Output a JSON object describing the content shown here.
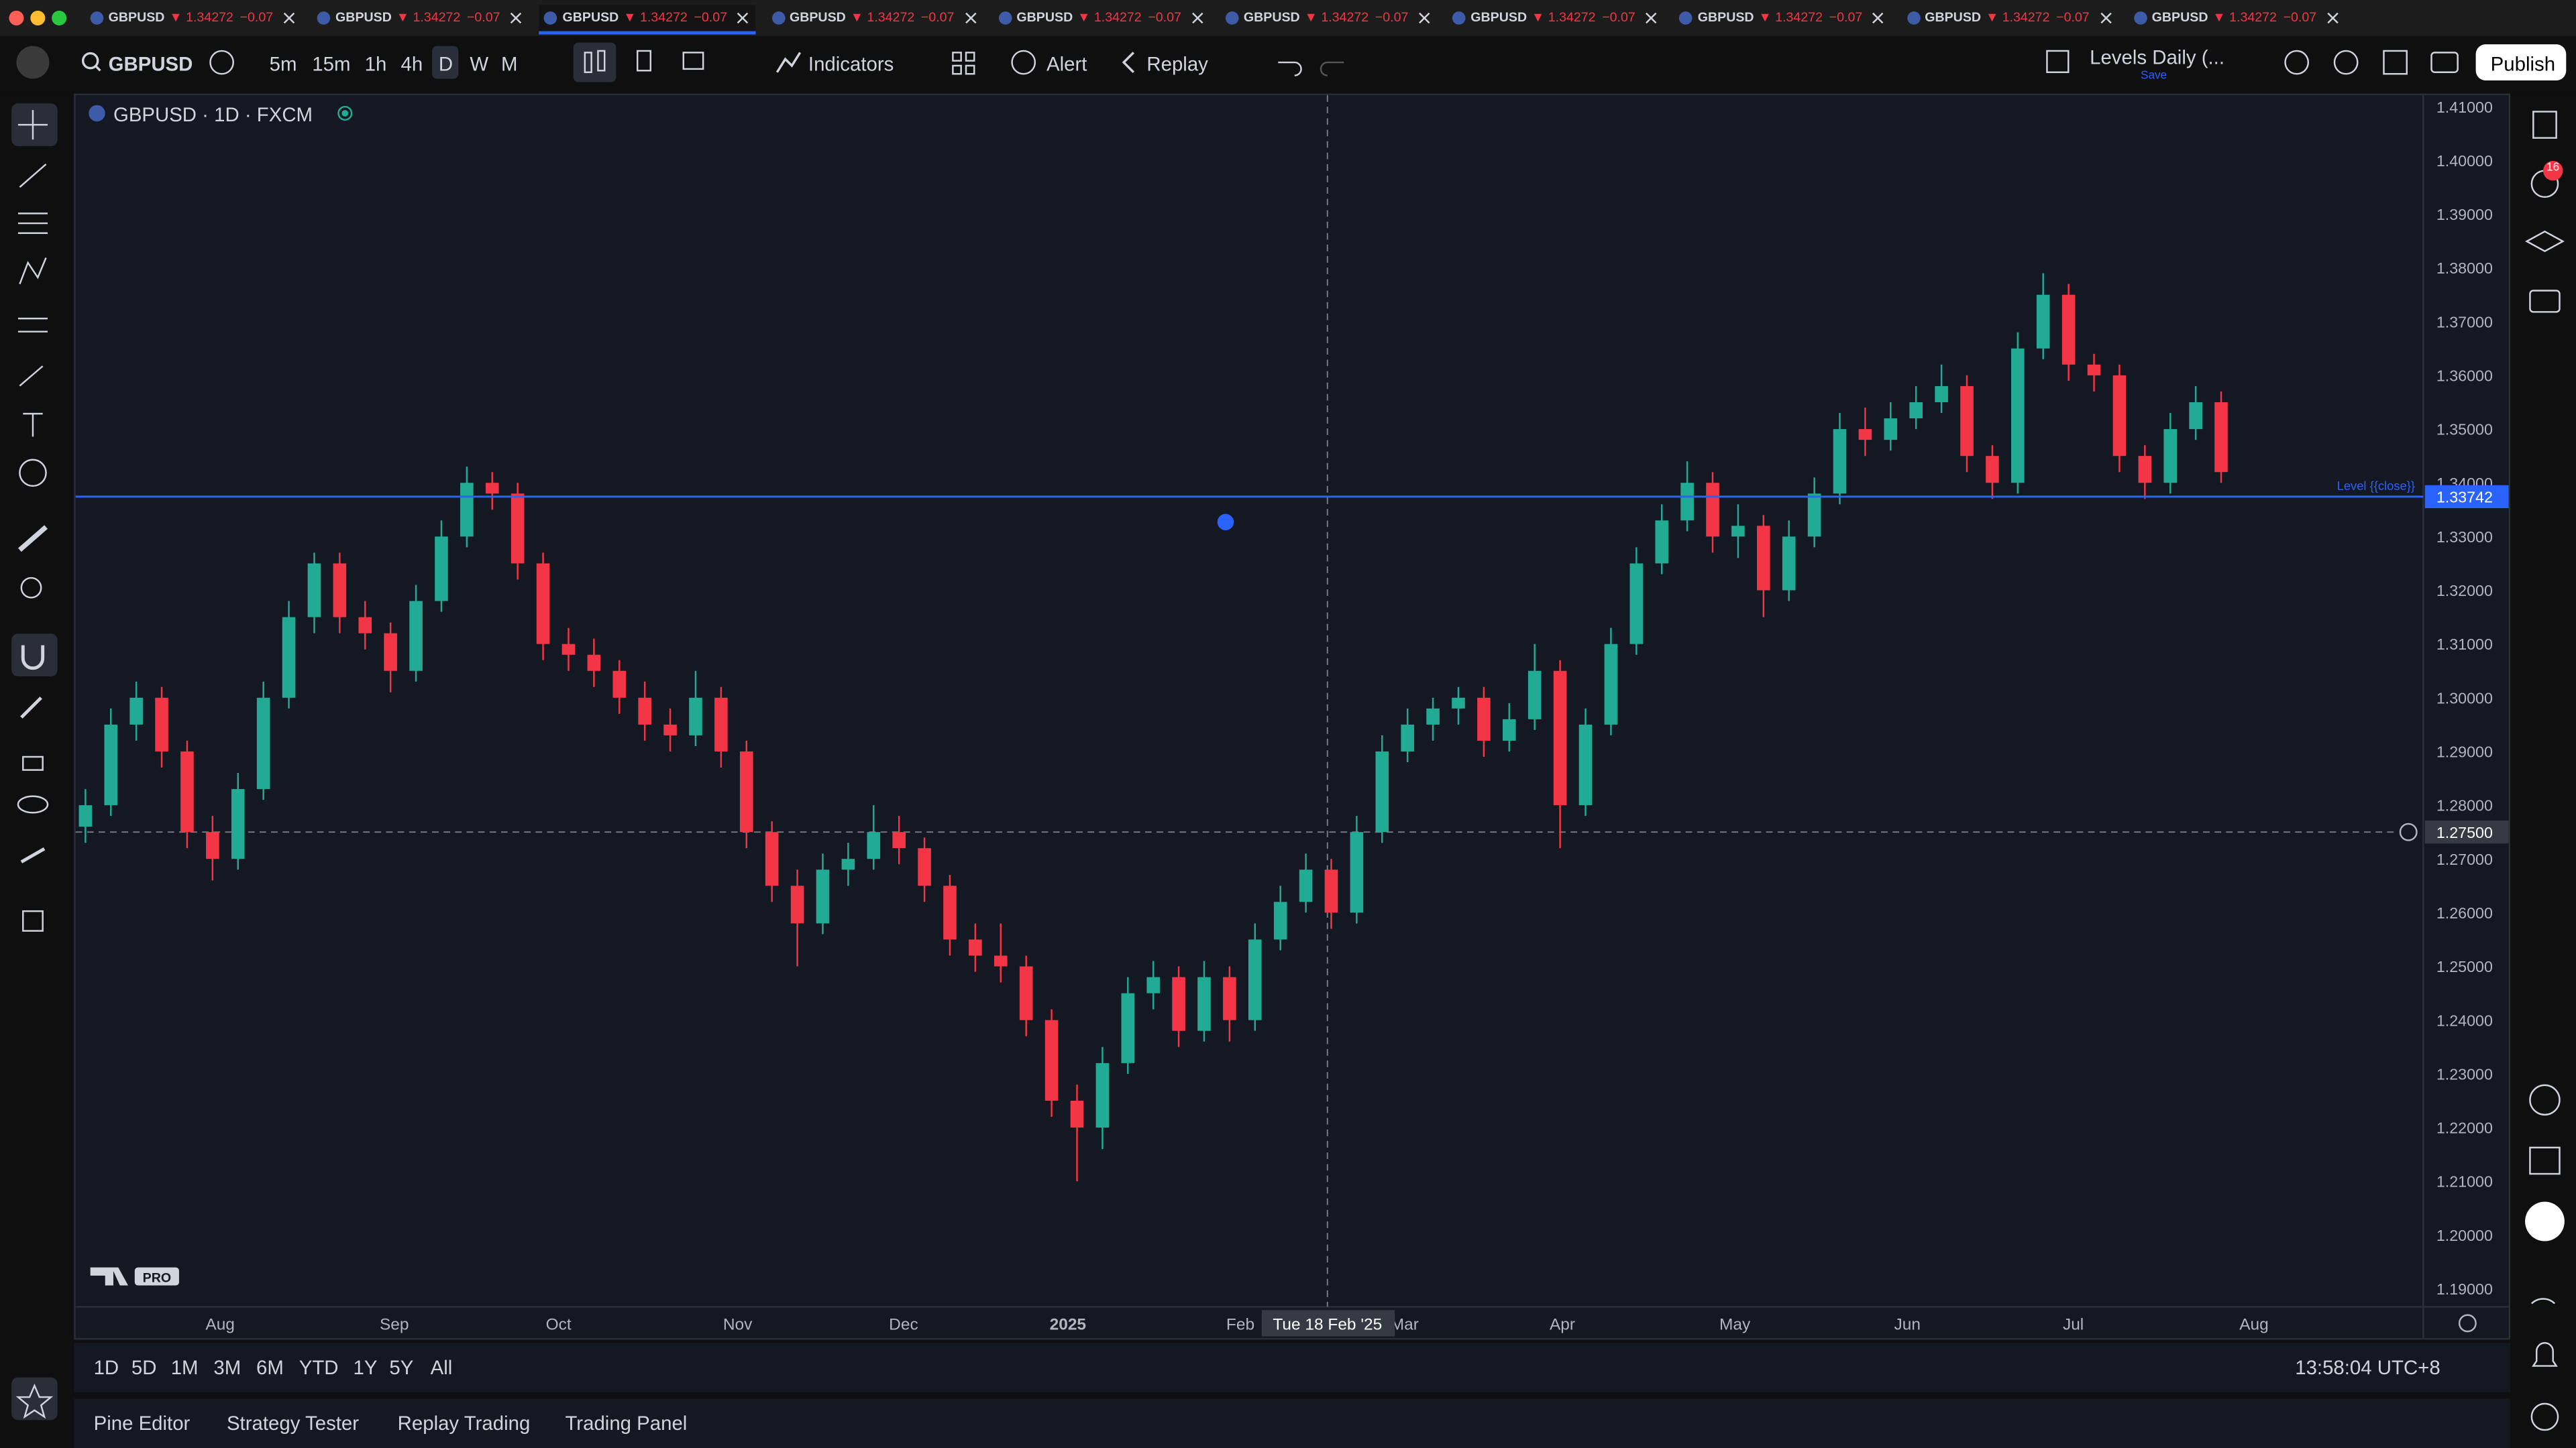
{
  "tabs": [
    {
      "symbol": "GBPUSD",
      "price": "▼ 1.34272",
      "change": "−0.07"
    },
    {
      "symbol": "GBPUSD",
      "price": "▼ 1.34272",
      "change": "−0.07"
    },
    {
      "symbol": "GBPUSD",
      "price": "▼ 1.34272",
      "change": "−0.07"
    },
    {
      "symbol": "GBPUSD",
      "price": "▼ 1.34272",
      "change": "−0.07"
    },
    {
      "symbol": "GBPUSD",
      "price": "▼ 1.34272",
      "change": "−0.07"
    },
    {
      "symbol": "GBPUSD",
      "price": "▼ 1.34272",
      "change": "−0.07"
    },
    {
      "symbol": "GBPUSD",
      "price": "▼ 1.34272",
      "change": "−0.07"
    },
    {
      "symbol": "GBPUSD",
      "price": "▼ 1.34272",
      "change": "−0.07"
    },
    {
      "symbol": "GBPUSD",
      "price": "▼ 1.34272",
      "change": "−0.07"
    },
    {
      "symbol": "GBPUSD",
      "price": "▼ 1.34272",
      "change": "−0.07"
    }
  ],
  "toolbar": {
    "symbol": "GBPUSD",
    "intervals": [
      "5m",
      "15m",
      "1h",
      "4h",
      "D",
      "W",
      "M"
    ],
    "indicators": "Indicators",
    "alert": "Alert",
    "replay": "Replay",
    "layout_name": "Levels Daily (...",
    "layout_status": "Save",
    "publish": "Publish"
  },
  "chart": {
    "type": "candlestick",
    "title": "GBPUSD · 1D · FXCM",
    "ylim": [
      1.19,
      1.41
    ],
    "yticks": [
      {
        "value": 1.19,
        "label": "1.19000"
      },
      {
        "value": 1.2,
        "label": "1.20000"
      },
      {
        "value": 1.21,
        "label": "1.21000"
      },
      {
        "value": 1.22,
        "label": "1.22000"
      },
      {
        "value": 1.23,
        "label": "1.23000"
      },
      {
        "value": 1.24,
        "label": "1.24000"
      },
      {
        "value": 1.25,
        "label": "1.25000"
      },
      {
        "value": 1.26,
        "label": "1.26000"
      },
      {
        "value": 1.27,
        "label": "1.27000"
      },
      {
        "value": 1.28,
        "label": "1.28000"
      },
      {
        "value": 1.29,
        "label": "1.29000"
      },
      {
        "value": 1.3,
        "label": "1.30000"
      },
      {
        "value": 1.31,
        "label": "1.31000"
      },
      {
        "value": 1.32,
        "label": "1.32000"
      },
      {
        "value": 1.33,
        "label": "1.33000"
      },
      {
        "value": 1.34,
        "label": "1.34000"
      },
      {
        "value": 1.35,
        "label": "1.35000"
      },
      {
        "value": 1.36,
        "label": "1.36000"
      },
      {
        "value": 1.37,
        "label": "1.37000"
      },
      {
        "value": 1.38,
        "label": "1.38000"
      },
      {
        "value": 1.39,
        "label": "1.39000"
      },
      {
        "value": 1.4,
        "label": "1.40000"
      },
      {
        "value": 1.41,
        "label": "1.41000"
      }
    ],
    "xlabels": [
      "Aug",
      "Sep",
      "Oct",
      "Nov",
      "Dec",
      "2025",
      "Feb",
      "Mar",
      "Apr",
      "May",
      "Jun",
      "Jul",
      "Aug"
    ],
    "up_color": "#22ab94",
    "down_color": "#f23645",
    "level": {
      "value": 1.33742,
      "label": "1.33742",
      "name": "Level {{close}}",
      "color": "#2962ff"
    },
    "crosshair": {
      "value": 1.275,
      "label": "1.27500",
      "date": "Tue 18 Feb '25"
    },
    "candles": [
      [
        1.276,
        1.283,
        1.273,
        1.28
      ],
      [
        1.28,
        1.298,
        1.278,
        1.295
      ],
      [
        1.295,
        1.303,
        1.292,
        1.3
      ],
      [
        1.3,
        1.302,
        1.287,
        1.29
      ],
      [
        1.29,
        1.292,
        1.272,
        1.275
      ],
      [
        1.275,
        1.278,
        1.266,
        1.27
      ],
      [
        1.27,
        1.286,
        1.268,
        1.283
      ],
      [
        1.283,
        1.303,
        1.281,
        1.3
      ],
      [
        1.3,
        1.318,
        1.298,
        1.315
      ],
      [
        1.315,
        1.327,
        1.312,
        1.325
      ],
      [
        1.325,
        1.327,
        1.312,
        1.315
      ],
      [
        1.315,
        1.318,
        1.309,
        1.312
      ],
      [
        1.312,
        1.314,
        1.301,
        1.305
      ],
      [
        1.305,
        1.321,
        1.303,
        1.318
      ],
      [
        1.318,
        1.333,
        1.316,
        1.33
      ],
      [
        1.33,
        1.343,
        1.328,
        1.34
      ],
      [
        1.34,
        1.342,
        1.335,
        1.338
      ],
      [
        1.338,
        1.34,
        1.322,
        1.325
      ],
      [
        1.325,
        1.327,
        1.307,
        1.31
      ],
      [
        1.31,
        1.313,
        1.305,
        1.308
      ],
      [
        1.308,
        1.311,
        1.302,
        1.305
      ],
      [
        1.305,
        1.307,
        1.297,
        1.3
      ],
      [
        1.3,
        1.303,
        1.292,
        1.295
      ],
      [
        1.295,
        1.298,
        1.29,
        1.293
      ],
      [
        1.293,
        1.305,
        1.291,
        1.3
      ],
      [
        1.3,
        1.302,
        1.287,
        1.29
      ],
      [
        1.29,
        1.292,
        1.272,
        1.275
      ],
      [
        1.275,
        1.277,
        1.262,
        1.265
      ],
      [
        1.265,
        1.268,
        1.25,
        1.258
      ],
      [
        1.258,
        1.271,
        1.256,
        1.268
      ],
      [
        1.268,
        1.273,
        1.265,
        1.27
      ],
      [
        1.27,
        1.28,
        1.268,
        1.275
      ],
      [
        1.275,
        1.278,
        1.269,
        1.272
      ],
      [
        1.272,
        1.274,
        1.262,
        1.265
      ],
      [
        1.265,
        1.267,
        1.252,
        1.255
      ],
      [
        1.255,
        1.258,
        1.249,
        1.252
      ],
      [
        1.252,
        1.258,
        1.247,
        1.25
      ],
      [
        1.25,
        1.252,
        1.237,
        1.24
      ],
      [
        1.24,
        1.242,
        1.222,
        1.225
      ],
      [
        1.225,
        1.228,
        1.21,
        1.22
      ],
      [
        1.22,
        1.235,
        1.216,
        1.232
      ],
      [
        1.232,
        1.248,
        1.23,
        1.245
      ],
      [
        1.245,
        1.251,
        1.242,
        1.248
      ],
      [
        1.248,
        1.25,
        1.235,
        1.238
      ],
      [
        1.238,
        1.251,
        1.236,
        1.248
      ],
      [
        1.248,
        1.25,
        1.236,
        1.24
      ],
      [
        1.24,
        1.258,
        1.238,
        1.255
      ],
      [
        1.255,
        1.265,
        1.253,
        1.262
      ],
      [
        1.262,
        1.271,
        1.26,
        1.268
      ],
      [
        1.268,
        1.27,
        1.257,
        1.26
      ],
      [
        1.26,
        1.278,
        1.258,
        1.275
      ],
      [
        1.275,
        1.293,
        1.273,
        1.29
      ],
      [
        1.29,
        1.298,
        1.288,
        1.295
      ],
      [
        1.295,
        1.3,
        1.292,
        1.298
      ],
      [
        1.298,
        1.302,
        1.295,
        1.3
      ],
      [
        1.3,
        1.302,
        1.289,
        1.292
      ],
      [
        1.292,
        1.299,
        1.29,
        1.296
      ],
      [
        1.296,
        1.31,
        1.294,
        1.305
      ],
      [
        1.305,
        1.307,
        1.272,
        1.28
      ],
      [
        1.28,
        1.298,
        1.278,
        1.295
      ],
      [
        1.295,
        1.313,
        1.293,
        1.31
      ],
      [
        1.31,
        1.328,
        1.308,
        1.325
      ],
      [
        1.325,
        1.336,
        1.323,
        1.333
      ],
      [
        1.333,
        1.344,
        1.331,
        1.34
      ],
      [
        1.34,
        1.342,
        1.327,
        1.33
      ],
      [
        1.33,
        1.336,
        1.326,
        1.332
      ],
      [
        1.332,
        1.334,
        1.315,
        1.32
      ],
      [
        1.32,
        1.333,
        1.318,
        1.33
      ],
      [
        1.33,
        1.341,
        1.328,
        1.338
      ],
      [
        1.338,
        1.353,
        1.336,
        1.35
      ],
      [
        1.35,
        1.354,
        1.345,
        1.348
      ],
      [
        1.348,
        1.355,
        1.346,
        1.352
      ],
      [
        1.352,
        1.358,
        1.35,
        1.355
      ],
      [
        1.355,
        1.362,
        1.353,
        1.358
      ],
      [
        1.358,
        1.36,
        1.342,
        1.345
      ],
      [
        1.345,
        1.347,
        1.337,
        1.34
      ],
      [
        1.34,
        1.368,
        1.338,
        1.365
      ],
      [
        1.365,
        1.379,
        1.363,
        1.375
      ],
      [
        1.375,
        1.377,
        1.359,
        1.362
      ],
      [
        1.362,
        1.364,
        1.357,
        1.36
      ],
      [
        1.36,
        1.362,
        1.342,
        1.345
      ],
      [
        1.345,
        1.347,
        1.337,
        1.34
      ],
      [
        1.34,
        1.353,
        1.338,
        1.35
      ],
      [
        1.35,
        1.358,
        1.348,
        1.355
      ],
      [
        1.355,
        1.357,
        1.34,
        1.342
      ]
    ]
  },
  "logo": "PRO",
  "alerts_badge": "16",
  "ranges": [
    "1D",
    "5D",
    "1M",
    "3M",
    "6M",
    "YTD",
    "1Y",
    "5Y",
    "All"
  ],
  "clock": "13:58:04 UTC+8",
  "bottom_tabs": [
    "Pine Editor",
    "Strategy Tester",
    "Replay Trading",
    "Trading Panel"
  ]
}
